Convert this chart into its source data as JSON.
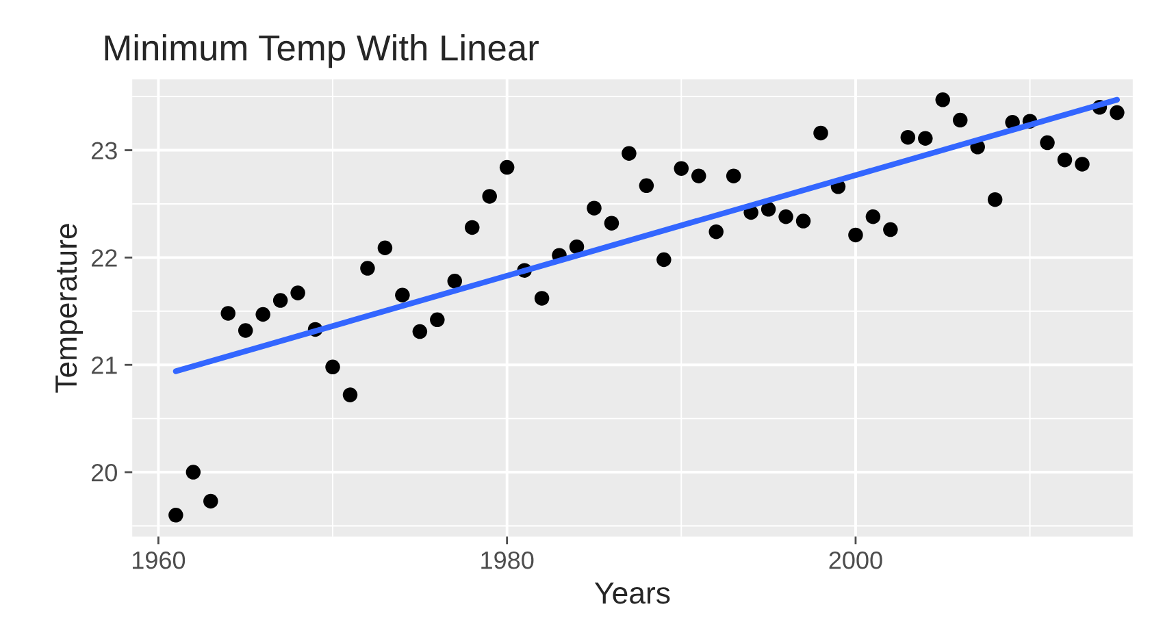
{
  "chart_data": {
    "type": "scatter",
    "title": "Minimum Temp With Linear",
    "xlabel": "Years",
    "ylabel": "Temperature",
    "xlim": [
      1958.5,
      2015.9
    ],
    "ylim": [
      19.4,
      23.66
    ],
    "xticks": [
      1960,
      1980,
      2000
    ],
    "yticks": [
      20,
      21,
      22,
      23
    ],
    "grid": true,
    "series": [
      {
        "marker": "circle",
        "color": "#000000",
        "x": [
          1961,
          1962,
          1963,
          1964,
          1965,
          1966,
          1967,
          1968,
          1969,
          1970,
          1971,
          1972,
          1973,
          1974,
          1975,
          1976,
          1977,
          1978,
          1979,
          1980,
          1981,
          1982,
          1983,
          1984,
          1985,
          1986,
          1987,
          1988,
          1989,
          1990,
          1991,
          1992,
          1993,
          1994,
          1995,
          1996,
          1997,
          1998,
          1999,
          2000,
          2001,
          2002,
          2003,
          2004,
          2005,
          2006,
          2007,
          2008,
          2009,
          2010,
          2011,
          2012,
          2013,
          2014,
          2015
        ],
        "values": [
          19.6,
          20.0,
          19.73,
          21.48,
          21.32,
          21.47,
          21.6,
          21.67,
          21.33,
          20.98,
          20.72,
          21.9,
          22.09,
          21.65,
          21.31,
          21.42,
          21.78,
          22.28,
          22.57,
          22.84,
          21.88,
          21.62,
          22.02,
          22.1,
          22.46,
          22.32,
          22.97,
          22.67,
          21.98,
          22.83,
          22.76,
          22.24,
          22.76,
          22.42,
          22.45,
          22.38,
          22.34,
          23.16,
          22.66,
          22.21,
          22.38,
          22.26,
          23.12,
          23.11,
          23.47,
          23.28,
          23.03,
          22.54,
          23.26,
          23.27,
          23.07,
          22.91,
          22.87,
          23.4,
          23.35
        ]
      },
      {
        "type": "line",
        "color": "#3366ff",
        "x": [
          1961,
          2015
        ],
        "values": [
          20.94,
          23.47
        ]
      }
    ]
  }
}
